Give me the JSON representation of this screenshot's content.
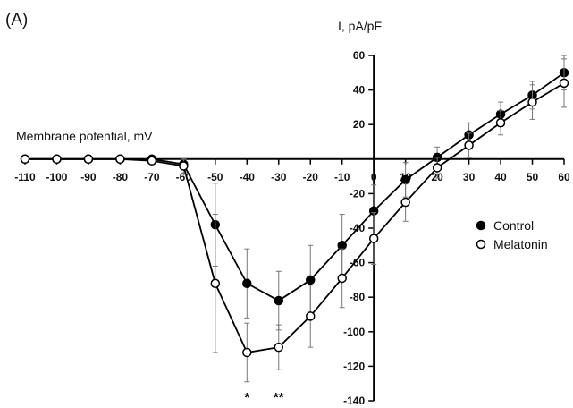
{
  "chart_data": {
    "type": "line",
    "panel_label": "(A)",
    "xlabel": "Membrane potential, mV",
    "ylabel": "I, pA/pF",
    "xlim": [
      -110,
      60
    ],
    "ylim": [
      -140,
      60
    ],
    "x_ticks": [
      -110,
      -100,
      -90,
      -80,
      -70,
      -60,
      -50,
      -40,
      -30,
      -20,
      -10,
      0,
      10,
      20,
      30,
      40,
      50,
      60
    ],
    "y_ticks": [
      60,
      40,
      20,
      -20,
      -40,
      -60,
      -80,
      -100,
      -120,
      -140
    ],
    "x": [
      -110,
      -100,
      -90,
      -80,
      -70,
      -60,
      -50,
      -40,
      -30,
      -20,
      -10,
      0,
      10,
      20,
      30,
      40,
      50,
      60
    ],
    "series": [
      {
        "name": "Control",
        "marker": "filled-circle",
        "color": "#000000",
        "values": [
          0,
          0,
          0,
          0,
          0,
          -3,
          -38,
          -72,
          -82,
          -70,
          -50,
          -30,
          -12,
          1,
          14,
          26,
          37,
          50
        ],
        "errors": [
          0,
          0,
          0,
          0,
          1,
          3,
          24,
          20,
          17,
          20,
          18,
          15,
          10,
          6,
          7,
          7,
          8,
          10
        ]
      },
      {
        "name": "Melatonin",
        "marker": "open-circle",
        "color": "#000000",
        "values": [
          0,
          0,
          0,
          0,
          -1,
          -4,
          -72,
          -112,
          -109,
          -91,
          -69,
          -46,
          -25,
          -5,
          8,
          21,
          33,
          44
        ],
        "errors": [
          0,
          0,
          0,
          0,
          2,
          4,
          40,
          17,
          13,
          18,
          17,
          15,
          11,
          6,
          7,
          7,
          10,
          14
        ]
      }
    ],
    "annotations": [
      {
        "text": "*",
        "x": -40
      },
      {
        "text": "**",
        "x": -30
      }
    ],
    "legend": {
      "position": "right",
      "entries": [
        "Control",
        "Melatonin"
      ]
    }
  }
}
